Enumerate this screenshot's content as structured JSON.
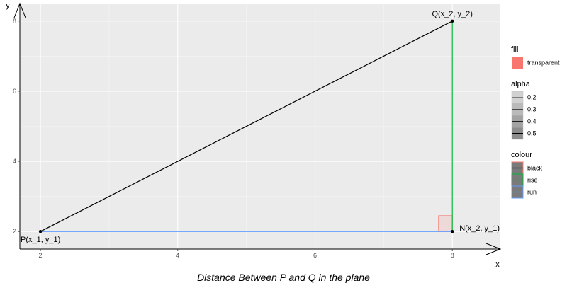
{
  "chart_data": {
    "type": "scatter",
    "caption": "Distance Between P and Q in the plane",
    "xlabel": "x",
    "ylabel": "y",
    "xlim": [
      1.7,
      8.7
    ],
    "ylim": [
      1.5,
      8.5
    ],
    "x_ticks": [
      2,
      4,
      6,
      8
    ],
    "y_ticks": [
      2,
      4,
      6,
      8
    ],
    "grid": true,
    "points": [
      {
        "label": "P(x_1, y_1)",
        "x": 2,
        "y": 2,
        "label_pos": "below-right"
      },
      {
        "label": "Q(x_2, y_2)",
        "x": 8,
        "y": 8,
        "label_pos": "above"
      },
      {
        "label": "N(x_2, y_1)",
        "x": 8,
        "y": 2,
        "label_pos": "right"
      }
    ],
    "segments": [
      {
        "name": "PQ",
        "from": [
          2,
          2
        ],
        "to": [
          8,
          8
        ],
        "colour": "#000000"
      },
      {
        "name": "run",
        "from": [
          2,
          2
        ],
        "to": [
          8,
          2
        ],
        "colour": "#619CFF"
      },
      {
        "name": "rise",
        "from": [
          8,
          2
        ],
        "to": [
          8,
          8
        ],
        "colour": "#00BA38"
      }
    ],
    "right_angle_marker": {
      "x_from": 7.8,
      "x_to": 8,
      "y_from": 2,
      "y_to": 2.45,
      "fill": "#F8766D"
    },
    "legend_placement": "right",
    "legends": [
      {
        "title": "fill",
        "items": [
          {
            "label": "transparent",
            "color": "#F8766D",
            "kind": "fill"
          }
        ]
      },
      {
        "title": "alpha",
        "items": [
          {
            "label": "0.2",
            "alpha": 0.2
          },
          {
            "label": "0.3",
            "alpha": 0.3
          },
          {
            "label": "0.4",
            "alpha": 0.4
          },
          {
            "label": "0.5",
            "alpha": 0.5
          }
        ]
      },
      {
        "title": "colour",
        "items": [
          {
            "label": "black",
            "color": "#000000"
          },
          {
            "label": "rise",
            "color": "#00BA38"
          },
          {
            "label": "run",
            "color": "#619CFF"
          }
        ]
      }
    ]
  }
}
